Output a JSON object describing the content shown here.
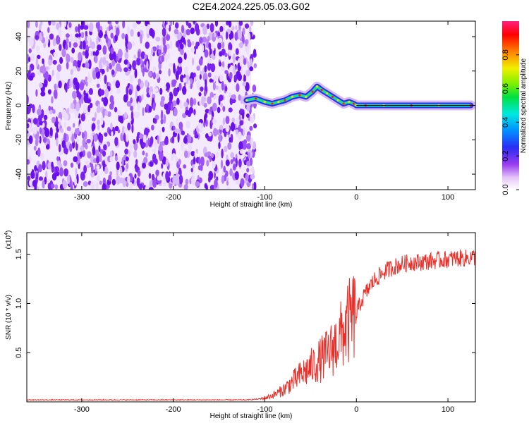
{
  "title": "C2E4.2024.225.05.03.G02",
  "colors": {
    "snr_line": "#e8302a",
    "spectrum_noise": "#7a22f0",
    "frame": "#000000"
  },
  "chart_data": [
    {
      "type": "heatmap",
      "xlabel": "Height of straight line (km)",
      "ylabel": "Frequency (Hz)",
      "xlim": [
        -360,
        130
      ],
      "ylim": [
        -49,
        49
      ],
      "x_ticks": [
        -300,
        -200,
        -100,
        0,
        100
      ],
      "y_ticks": [
        -40,
        -20,
        0,
        20,
        40
      ],
      "noise_region_x": [
        -360,
        -115
      ],
      "signal_trace": {
        "x": [
          -120,
          -110,
          -100,
          -92,
          -85,
          -78,
          -70,
          -62,
          -55,
          -48,
          -43,
          -38,
          -32,
          -26,
          -20,
          -14,
          -8,
          -3,
          0,
          10,
          30,
          60,
          90,
          125
        ],
        "y": [
          3,
          4,
          2,
          1,
          2,
          3,
          5,
          6,
          5,
          8,
          11,
          9,
          7,
          5,
          3,
          1,
          2,
          1,
          0,
          0,
          0,
          0,
          0,
          0
        ]
      },
      "colorbar": {
        "label": "Normalized spectral amplitude",
        "ticks": [
          "0.0",
          "0.2",
          "0.4",
          "0.6",
          "0.8"
        ],
        "tick_values": [
          0,
          0.2,
          0.4,
          0.6,
          0.8
        ],
        "range": [
          0,
          1
        ]
      },
      "grid": false
    },
    {
      "type": "line",
      "xlabel": "Height of straight line (km)",
      "ylabel": "SNR (10 * v/v)",
      "multiplier": "(x10",
      "multiplier_exp": "4",
      "multiplier_close": ")",
      "xlim": [
        -360,
        130
      ],
      "ylim": [
        0,
        1.72
      ],
      "x_ticks": [
        -300,
        -200,
        -100,
        0,
        100
      ],
      "y_ticks": [
        "0.5",
        "1.0",
        "1.5"
      ],
      "y_tick_values": [
        0.5,
        1.0,
        1.5
      ],
      "series": [
        {
          "x": [
            -360,
            -300,
            -200,
            -120,
            -105,
            -100,
            -90,
            -80,
            -70,
            -60,
            -50,
            -40,
            -30,
            -20,
            -10,
            -5,
            0,
            5,
            10,
            15,
            20,
            30,
            40,
            50,
            60,
            70,
            80,
            90,
            100,
            110,
            120,
            125
          ],
          "values": [
            0.02,
            0.02,
            0.02,
            0.02,
            0.03,
            0.04,
            0.07,
            0.12,
            0.2,
            0.28,
            0.35,
            0.42,
            0.5,
            0.62,
            0.78,
            0.85,
            0.9,
            1.02,
            1.1,
            1.18,
            1.24,
            1.32,
            1.37,
            1.4,
            1.42,
            1.42,
            1.43,
            1.44,
            1.45,
            1.46,
            1.46,
            1.47
          ]
        }
      ],
      "grid": false
    }
  ]
}
